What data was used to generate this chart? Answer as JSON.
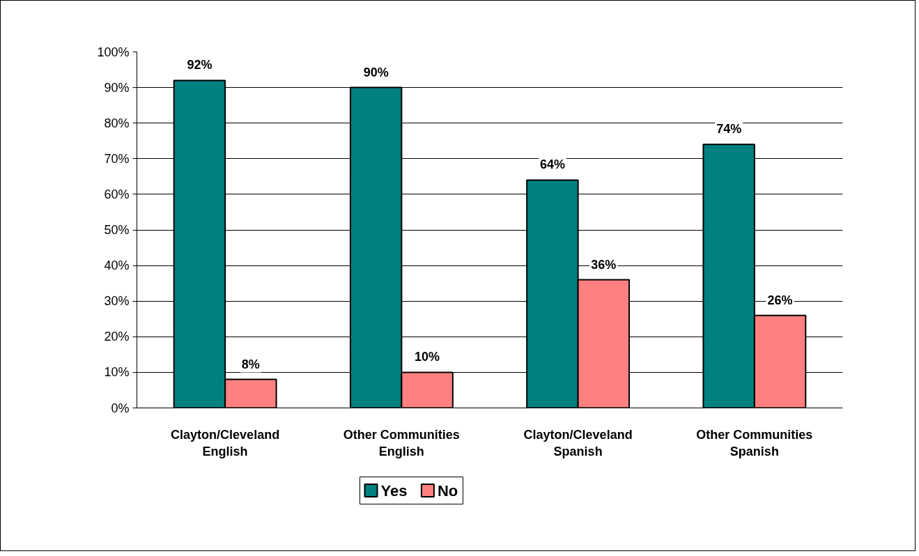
{
  "chart_data": {
    "type": "bar",
    "categories": [
      "Clayton/Cleveland\nEnglish",
      "Other Communities\nEnglish",
      "Clayton/Cleveland\nSpanish",
      "Other Communities\nSpanish"
    ],
    "series": [
      {
        "name": "Yes",
        "color": "#008080",
        "values": [
          92,
          90,
          64,
          74
        ],
        "value_labels": [
          "92%",
          "90%",
          "64%",
          "74%"
        ]
      },
      {
        "name": "No",
        "color": "#ff8080",
        "values": [
          8,
          10,
          36,
          26
        ],
        "value_labels": [
          "8%",
          "10%",
          "36%",
          "26%"
        ]
      }
    ],
    "ylim": [
      0,
      100
    ],
    "yticks": [
      {
        "value": 0,
        "label": "0%"
      },
      {
        "value": 10,
        "label": "10%"
      },
      {
        "value": 20,
        "label": "20%"
      },
      {
        "value": 30,
        "label": "30%"
      },
      {
        "value": 40,
        "label": "40%"
      },
      {
        "value": 50,
        "label": "50%"
      },
      {
        "value": 60,
        "label": "60%"
      },
      {
        "value": 70,
        "label": "70%"
      },
      {
        "value": 80,
        "label": "80%"
      },
      {
        "value": 90,
        "label": "90%"
      },
      {
        "value": 100,
        "label": "100%"
      }
    ],
    "grid": "y",
    "legend": "bottom"
  }
}
